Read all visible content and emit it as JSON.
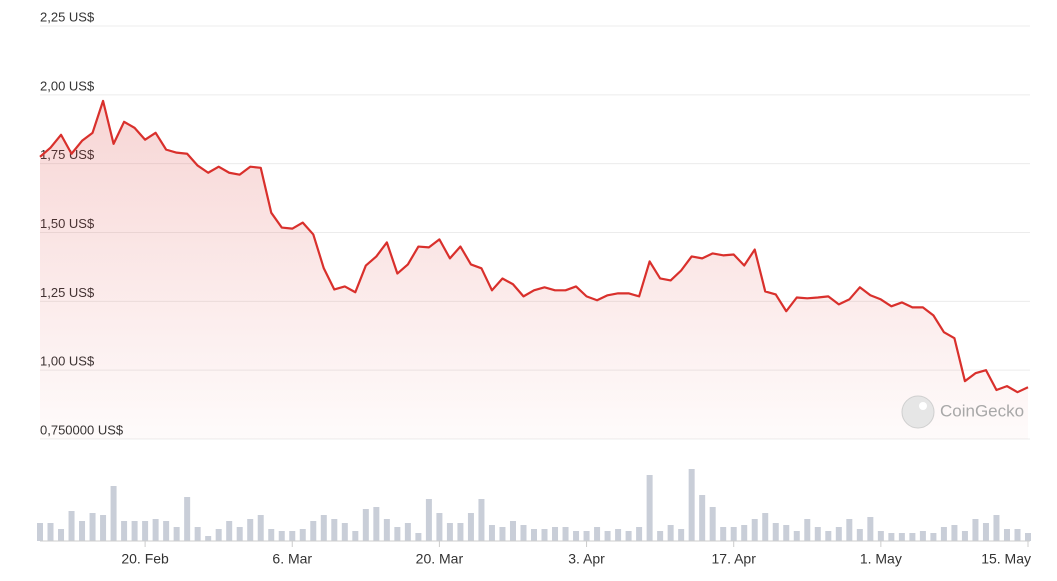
{
  "chart_data": {
    "type": "line",
    "categories": [
      null,
      null,
      null,
      null,
      null,
      null,
      null,
      null,
      null,
      null,
      "20. Feb",
      null,
      null,
      null,
      null,
      null,
      null,
      null,
      null,
      null,
      null,
      null,
      null,
      null,
      "6. Mar",
      null,
      null,
      null,
      null,
      null,
      null,
      null,
      null,
      null,
      null,
      null,
      null,
      null,
      "20. Mar",
      null,
      null,
      null,
      null,
      null,
      null,
      null,
      null,
      null,
      null,
      null,
      null,
      null,
      "3. Apr",
      null,
      null,
      null,
      null,
      null,
      null,
      null,
      null,
      null,
      null,
      null,
      null,
      null,
      "17. Apr",
      null,
      null,
      null,
      null,
      null,
      null,
      null,
      null,
      null,
      null,
      null,
      null,
      null,
      "1. May",
      null,
      null,
      null,
      null,
      null,
      null,
      null,
      null,
      null,
      null,
      null,
      null,
      null,
      "15. May"
    ],
    "series": [
      {
        "color": "#d9302c",
        "values": [
          1.775,
          1.808,
          1.855,
          1.786,
          1.833,
          1.862,
          1.978,
          1.822,
          1.902,
          1.88,
          1.837,
          1.862,
          1.801,
          1.79,
          1.786,
          1.743,
          1.717,
          1.739,
          1.717,
          1.71,
          1.739,
          1.735,
          1.572,
          1.518,
          1.514,
          1.536,
          1.493,
          1.37,
          1.293,
          1.304,
          1.283,
          1.38,
          1.413,
          1.464,
          1.351,
          1.384,
          1.449,
          1.446,
          1.475,
          1.406,
          1.449,
          1.384,
          1.37,
          1.29,
          1.333,
          1.312,
          1.268,
          1.29,
          1.301,
          1.29,
          1.29,
          1.304,
          1.268,
          1.254,
          1.272,
          1.279,
          1.279,
          1.268,
          1.395,
          1.333,
          1.326,
          1.362,
          1.413,
          1.406,
          1.424,
          1.417,
          1.42,
          1.38,
          1.438,
          1.286,
          1.275,
          1.214,
          1.264,
          1.261,
          1.264,
          1.268,
          1.239,
          1.257,
          1.301,
          1.272,
          1.257,
          1.232,
          1.246,
          1.228,
          1.228,
          1.199,
          1.138,
          1.116,
          0.96,
          0.989,
          1.0,
          0.928,
          0.942,
          0.92,
          0.938
        ]
      }
    ],
    "volume": {
      "color": "#c9ced8",
      "values": [
        18,
        18,
        12,
        30,
        20,
        28,
        26,
        55,
        20,
        20,
        20,
        22,
        20,
        14,
        44,
        14,
        5,
        12,
        20,
        14,
        22,
        26,
        12,
        10,
        10,
        12,
        20,
        26,
        22,
        18,
        10,
        32,
        34,
        22,
        14,
        18,
        8,
        42,
        28,
        18,
        18,
        28,
        42,
        16,
        14,
        20,
        16,
        12,
        12,
        14,
        14,
        10,
        10,
        14,
        10,
        12,
        10,
        14,
        66,
        10,
        16,
        12,
        72,
        46,
        34,
        14,
        14,
        16,
        22,
        28,
        18,
        16,
        10,
        22,
        14,
        10,
        14,
        22,
        12,
        24,
        10,
        8,
        8,
        8,
        10,
        8,
        14,
        16,
        10,
        22,
        18,
        26,
        12,
        12,
        8
      ]
    },
    "ylim": [
      0.75,
      2.25
    ],
    "yticks": [
      {
        "value": 0.75,
        "label": "0,750000 US$"
      },
      {
        "value": 1.0,
        "label": "1,00 US$"
      },
      {
        "value": 1.25,
        "label": "1,25 US$"
      },
      {
        "value": 1.5,
        "label": "1,50 US$"
      },
      {
        "value": 1.75,
        "label": "1,75 US$"
      },
      {
        "value": 2.0,
        "label": "2,00 US$"
      },
      {
        "value": 2.25,
        "label": "2,25 US$"
      }
    ],
    "grid": true,
    "watermark": "CoinGecko"
  }
}
